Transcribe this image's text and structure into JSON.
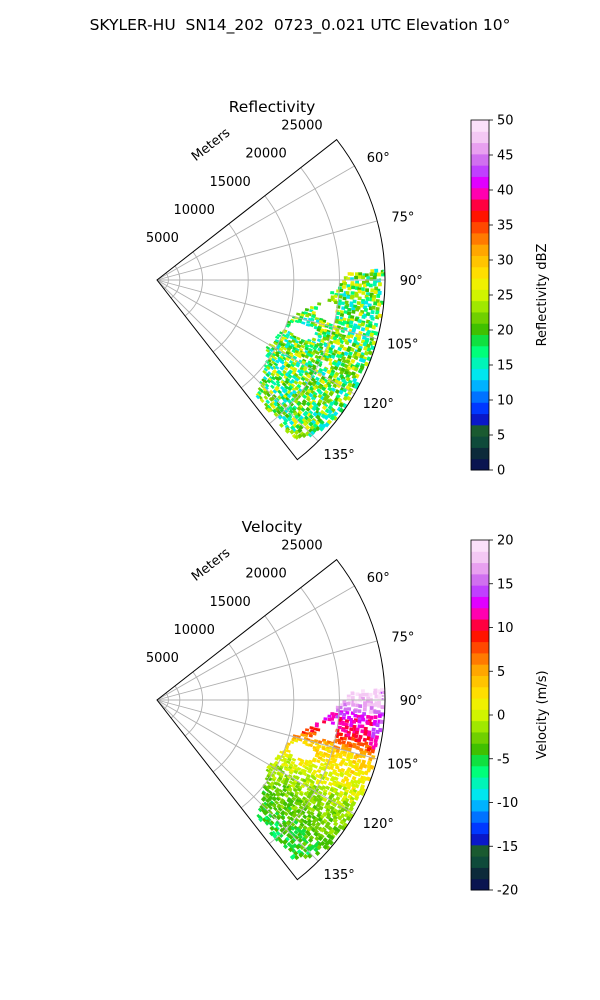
{
  "title": "SKYLER-HU  SN14_202  0723_0.021 UTC Elevation 10°",
  "chart_data": [
    {
      "type": "heatmap",
      "projection": "polar-sector",
      "title": "Reflectivity",
      "radial_axis_label": "Meters",
      "range_ticks": [
        "5000",
        "10000",
        "15000",
        "20000",
        "25000"
      ],
      "range_max": 25000,
      "azimuth_ticks": [
        "60°",
        "75°",
        "90°",
        "105°",
        "120°",
        "135°"
      ],
      "azimuth_span": [
        52,
        142
      ],
      "grid": true,
      "colorbar": {
        "label": "Reflectivity dBZ",
        "min": 0,
        "max": 50,
        "ticks": [
          "0",
          "5",
          "10",
          "15",
          "20",
          "25",
          "30",
          "35",
          "40",
          "45",
          "50"
        ],
        "colors": [
          "#0a1450",
          "#0c2a3a",
          "#0e4a3a",
          "#1a5a30",
          "#0a18c8",
          "#0038ff",
          "#0072ff",
          "#00b2ff",
          "#00e6ee",
          "#00f5b8",
          "#00ff7a",
          "#10e040",
          "#40c000",
          "#70d000",
          "#a0e800",
          "#d0f400",
          "#f0f000",
          "#ffde00",
          "#ffc400",
          "#ffa600",
          "#ff7a00",
          "#ff4800",
          "#ff1400",
          "#ff0040",
          "#ff00b0",
          "#e000ff",
          "#c040ff",
          "#d070f0",
          "#e8a0f0",
          "#f4c8f4",
          "#fce0fa"
        ]
      },
      "echo_summary": {
        "azimuth_extent_deg": [
          88,
          138
        ],
        "range_extent_m": [
          13000,
          25000
        ],
        "dominant_value": 20,
        "value_spread": [
          10,
          30
        ]
      }
    },
    {
      "type": "heatmap",
      "projection": "polar-sector",
      "title": "Velocity",
      "radial_axis_label": "Meters",
      "range_ticks": [
        "5000",
        "10000",
        "15000",
        "20000",
        "25000"
      ],
      "range_max": 25000,
      "azimuth_ticks": [
        "60°",
        "75°",
        "90°",
        "105°",
        "120°",
        "135°"
      ],
      "azimuth_span": [
        52,
        142
      ],
      "grid": true,
      "colorbar": {
        "label": "Velocity (m/s)",
        "min": -20,
        "max": 20,
        "ticks": [
          "-20",
          "-15",
          "-10",
          "-5",
          "0",
          "5",
          "10",
          "15",
          "20"
        ],
        "colors": [
          "#0a1450",
          "#0c2a3a",
          "#0e4a3a",
          "#1a5a30",
          "#0a18c8",
          "#0038ff",
          "#0072ff",
          "#00b2ff",
          "#00e6ee",
          "#00f5b8",
          "#00ff7a",
          "#10e040",
          "#40c000",
          "#70d000",
          "#a0e800",
          "#d0f400",
          "#f0f000",
          "#ffde00",
          "#ffc400",
          "#ffa600",
          "#ff7a00",
          "#ff4800",
          "#ff1400",
          "#ff0040",
          "#ff00b0",
          "#e000ff",
          "#c040ff",
          "#d070f0",
          "#e8a0f0",
          "#f4c8f4",
          "#fce0fa"
        ]
      },
      "echo_summary": {
        "azimuth_extent_deg": [
          88,
          138
        ],
        "range_extent_m": [
          13000,
          25000
        ],
        "near_value": 12,
        "far_value": -2,
        "value_spread": [
          -15,
          18
        ]
      }
    }
  ]
}
